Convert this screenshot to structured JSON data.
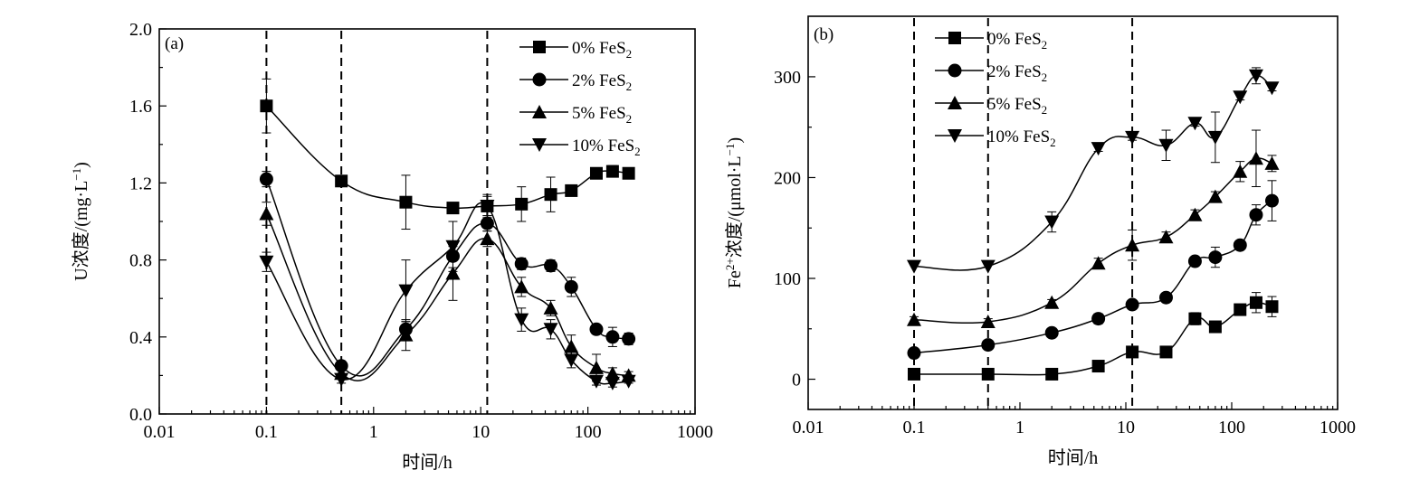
{
  "chart_data": [
    {
      "type": "line",
      "panel_label": "(a)",
      "xlabel": "时间/h",
      "ylabel": "U浓度/(mg·L⁻¹)",
      "x_scale": "log",
      "xlim": [
        0.01,
        1000
      ],
      "ylim": [
        0.0,
        2.0
      ],
      "x_ticks": [
        "0.01",
        "0.1",
        "1",
        "10",
        "100",
        "1000"
      ],
      "x_tick_values": [
        0.01,
        0.1,
        1,
        10,
        100,
        1000
      ],
      "y_ticks": [
        "0.0",
        "0.4",
        "0.8",
        "1.2",
        "1.6",
        "2.0"
      ],
      "y_tick_values": [
        0.0,
        0.4,
        0.8,
        1.2,
        1.6,
        2.0
      ],
      "vlines": [
        0.1,
        0.5,
        11.5
      ],
      "legend_position": "top-right",
      "series": [
        {
          "name": "0% FeS₂",
          "marker": "square",
          "x": [
            0.1,
            0.5,
            2,
            5.5,
            11.5,
            24,
            45,
            70,
            120,
            170,
            240
          ],
          "y": [
            1.6,
            1.21,
            1.1,
            1.07,
            1.08,
            1.09,
            1.14,
            1.16,
            1.25,
            1.26,
            1.25
          ],
          "err": [
            0.14,
            0,
            0.14,
            0.02,
            0.06,
            0.09,
            0.09,
            0.01,
            0.01,
            0.03,
            0.02
          ]
        },
        {
          "name": "2% FeS₂",
          "marker": "circle",
          "x": [
            0.1,
            0.5,
            2,
            5.5,
            11.5,
            24,
            45,
            70,
            120,
            170,
            240
          ],
          "y": [
            1.22,
            0.25,
            0.44,
            0.82,
            0.99,
            0.78,
            0.77,
            0.66,
            0.44,
            0.4,
            0.39
          ],
          "err": [
            0.04,
            0.02,
            0.04,
            0.06,
            0.04,
            0.03,
            0.03,
            0.05,
            0.02,
            0.05,
            0.03
          ]
        },
        {
          "name": "5% FeS₂",
          "marker": "triangle-up",
          "x": [
            0.1,
            0.5,
            2,
            5.5,
            11.5,
            24,
            45,
            70,
            120,
            170,
            240
          ],
          "y": [
            1.04,
            0.21,
            0.41,
            0.73,
            0.91,
            0.66,
            0.55,
            0.35,
            0.24,
            0.21,
            0.2
          ],
          "err": [
            0.06,
            0.02,
            0.08,
            0.14,
            0.04,
            0.05,
            0.04,
            0.06,
            0.07,
            0.03,
            0.02
          ]
        },
        {
          "name": "10% FeS₂",
          "marker": "triangle-down",
          "x": [
            0.1,
            0.5,
            2,
            5.5,
            11.5,
            24,
            45,
            70,
            120,
            170,
            240
          ],
          "y": [
            0.79,
            0.18,
            0.64,
            0.87,
            1.08,
            0.49,
            0.44,
            0.28,
            0.17,
            0.16,
            0.17
          ],
          "err": [
            0.05,
            0.02,
            0.16,
            0.13,
            0.05,
            0.06,
            0.05,
            0.04,
            0.02,
            0.02,
            0.01
          ]
        }
      ]
    },
    {
      "type": "line",
      "panel_label": "(b)",
      "xlabel": "时间/h",
      "ylabel": "Fe²⁺浓度/(μmol·L⁻¹)",
      "x_scale": "log",
      "xlim": [
        0.01,
        1000
      ],
      "ylim": [
        -30,
        360
      ],
      "x_ticks": [
        "0.01",
        "0.1",
        "1",
        "10",
        "100",
        "1000"
      ],
      "x_tick_values": [
        0.01,
        0.1,
        1,
        10,
        100,
        1000
      ],
      "y_ticks": [
        "0",
        "100",
        "200",
        "300"
      ],
      "y_tick_values": [
        0,
        100,
        200,
        300
      ],
      "vlines": [
        0.1,
        0.5,
        11.5
      ],
      "legend_position": "top-left",
      "series": [
        {
          "name": "0% FeS₂",
          "marker": "square",
          "x": [
            0.1,
            0.5,
            2,
            5.5,
            11.5,
            24,
            45,
            70,
            120,
            170,
            240
          ],
          "y": [
            5,
            5,
            5,
            13,
            27,
            27,
            60,
            52,
            69,
            76,
            72
          ],
          "err": [
            0,
            0,
            0,
            2,
            3,
            3,
            6,
            4,
            5,
            10,
            10
          ]
        },
        {
          "name": "2% FeS₂",
          "marker": "circle",
          "x": [
            0.1,
            0.5,
            2,
            5.5,
            11.5,
            24,
            45,
            70,
            120,
            170,
            240
          ],
          "y": [
            26,
            34,
            46,
            60,
            74,
            81,
            117,
            121,
            133,
            163,
            177
          ],
          "err": [
            3,
            3,
            3,
            5,
            4,
            4,
            4,
            10,
            4,
            10,
            20
          ]
        },
        {
          "name": "5% FeS₂",
          "marker": "triangle-up",
          "x": [
            0.1,
            0.5,
            2,
            5.5,
            11.5,
            24,
            45,
            70,
            120,
            170,
            240
          ],
          "y": [
            59,
            57,
            76,
            115,
            133,
            141,
            163,
            181,
            206,
            219,
            214
          ],
          "err": [
            3,
            3,
            3,
            5,
            15,
            5,
            5,
            5,
            10,
            28,
            8
          ]
        },
        {
          "name": "10% FeS₂",
          "marker": "triangle-down",
          "x": [
            0.1,
            0.5,
            2,
            5.5,
            11.5,
            24,
            45,
            70,
            120,
            170,
            240
          ],
          "y": [
            112,
            112,
            156,
            229,
            240,
            232,
            254,
            240,
            280,
            301,
            289
          ],
          "err": [
            0,
            0,
            10,
            3,
            3,
            15,
            3,
            25,
            3,
            8,
            3
          ]
        }
      ]
    }
  ]
}
